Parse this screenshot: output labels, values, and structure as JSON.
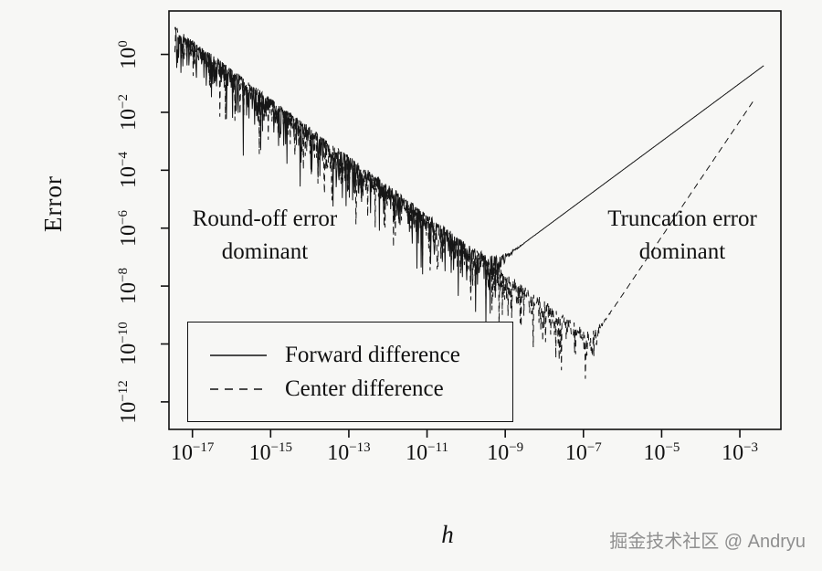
{
  "watermark": {
    "text": "掘金技术社区 @ Andryu"
  },
  "chart_data": {
    "type": "line",
    "title": "",
    "xlabel": "h",
    "ylabel": "Error",
    "x_scale": "log10",
    "y_scale": "log10",
    "grid": false,
    "legend_position": "lower-left",
    "xlim_log10": [
      -17.6,
      -1.95
    ],
    "ylim_log10": [
      -12.95,
      1.5
    ],
    "x_tick_exponents": [
      -17,
      -15,
      -13,
      -11,
      -9,
      -7,
      -5,
      -3
    ],
    "x_tick_labels": [
      "10^-17",
      "10^-15",
      "10^-13",
      "10^-11",
      "10^-9",
      "10^-7",
      "10^-5",
      "10^-3"
    ],
    "y_tick_exponents": [
      0,
      -2,
      -4,
      -6,
      -8,
      -10,
      -12
    ],
    "y_tick_labels": [
      "10^0",
      "10^-2",
      "10^-4",
      "10^-6",
      "10^-8",
      "10^-10",
      "10^-12"
    ],
    "annotations": [
      {
        "id": "round-off",
        "lines": [
          "Round-off error",
          "dominant"
        ]
      },
      {
        "id": "truncation",
        "lines": [
          "Truncation error",
          "dominant"
        ]
      }
    ],
    "series": [
      {
        "name": "Forward difference",
        "style": "solid",
        "color": "#161616",
        "x_log10_range": [
          -17.45,
          -2.38
        ],
        "model": {
          "description": "error(h) = |trunc_coef*h^trunc_power + r*round_coef/h| with r~uniform(-1,1) round-off noise",
          "log10_round_coef": -16.5,
          "log10_trunc_coef": 2.0,
          "trunc_power": 1,
          "seed": 7
        },
        "envelope_points_log10": [
          [
            -17.4,
            0.9
          ],
          [
            -15,
            -1.5
          ],
          [
            -13,
            -3.5
          ],
          [
            -11,
            -5.5
          ],
          [
            -9.25,
            -7.25
          ],
          [
            -7,
            -5.0
          ],
          [
            -5,
            -3.0
          ],
          [
            -3,
            -1.0
          ],
          [
            -2.4,
            -0.4
          ]
        ]
      },
      {
        "name": "Center difference",
        "style": "dashed",
        "color": "#161616",
        "x_log10_range": [
          -17.45,
          -2.62
        ],
        "model": {
          "description": "error(h) = |trunc_coef*h^trunc_power + r*round_coef/h| with r~uniform(-1,1) round-off noise",
          "log10_round_coef": -16.5,
          "log10_trunc_coef": 3.7,
          "trunc_power": 2,
          "seed": 13
        },
        "envelope_points_log10": [
          [
            -17.4,
            0.9
          ],
          [
            -15,
            -1.5
          ],
          [
            -13,
            -3.5
          ],
          [
            -11,
            -5.5
          ],
          [
            -9,
            -7.5
          ],
          [
            -6.73,
            -9.77
          ],
          [
            -5,
            -6.3
          ],
          [
            -4,
            -4.3
          ],
          [
            -3,
            -2.3
          ],
          [
            -2.62,
            -1.54
          ]
        ]
      }
    ]
  }
}
